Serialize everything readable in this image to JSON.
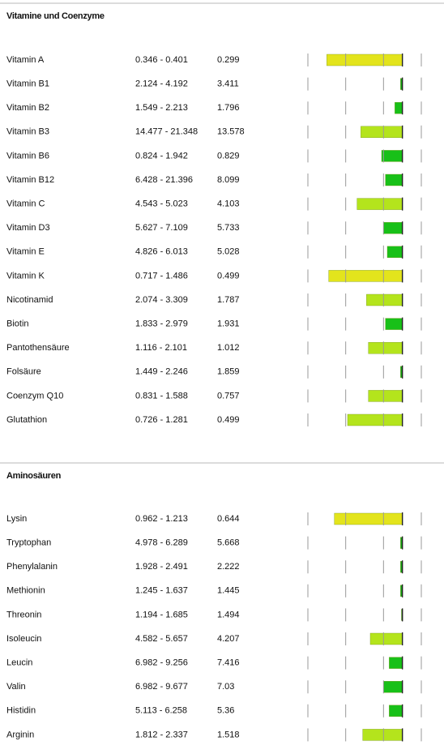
{
  "sections": [
    {
      "title": "Vitamine und Coenzyme",
      "rows": [
        {
          "name": "Vitamin A",
          "range": "0.346 - 0.401",
          "value": "0.299",
          "bar": -4.0,
          "color": "#e3e41c"
        },
        {
          "name": "Vitamin B1",
          "range": "2.124 - 4.192",
          "value": "3.411",
          "bar": -0.1,
          "color": "#16a416"
        },
        {
          "name": "Vitamin B2",
          "range": "1.549 - 2.213",
          "value": "1.796",
          "bar": -0.4,
          "color": "#18c018"
        },
        {
          "name": "Vitamin B3",
          "range": "14.477 - 21.348",
          "value": "13.578",
          "bar": -2.2,
          "color": "#b4e41c"
        },
        {
          "name": "Vitamin B6",
          "range": "0.824 - 1.942",
          "value": "0.829",
          "bar": -1.1,
          "color": "#18c018"
        },
        {
          "name": "Vitamin B12",
          "range": "6.428 - 21.396",
          "value": "8.099",
          "bar": -0.9,
          "color": "#18c018"
        },
        {
          "name": "Vitamin C",
          "range": "4.543 - 5.023",
          "value": "4.103",
          "bar": -2.4,
          "color": "#b4e41c"
        },
        {
          "name": "Vitamin D3",
          "range": "5.627 - 7.109",
          "value": "5.733",
          "bar": -1.0,
          "color": "#18c018"
        },
        {
          "name": "Vitamin E",
          "range": "4.826 - 6.013",
          "value": "5.028",
          "bar": -0.8,
          "color": "#18c018"
        },
        {
          "name": "Vitamin K",
          "range": "0.717 - 1.486",
          "value": "0.499",
          "bar": -3.9,
          "color": "#e3e41c"
        },
        {
          "name": "Nicotinamid",
          "range": "2.074 - 3.309",
          "value": "1.787",
          "bar": -1.9,
          "color": "#b4e41c"
        },
        {
          "name": "Biotin",
          "range": "1.833 - 2.979",
          "value": "1.931",
          "bar": -0.9,
          "color": "#18c018"
        },
        {
          "name": "Pantothensäure",
          "range": "1.116 - 2.101",
          "value": "1.012",
          "bar": -1.8,
          "color": "#b4e41c"
        },
        {
          "name": "Folsäure",
          "range": "1.449 - 2.246",
          "value": "1.859",
          "bar": -0.1,
          "color": "#16a416"
        },
        {
          "name": "Coenzym Q10",
          "range": "0.831 - 1.588",
          "value": "0.757",
          "bar": -1.8,
          "color": "#b4e41c"
        },
        {
          "name": "Glutathion",
          "range": "0.726 - 1.281",
          "value": "0.499",
          "bar": -2.9,
          "color": "#b4e41c"
        }
      ]
    },
    {
      "title": "Aminosäuren",
      "rows": [
        {
          "name": "Lysin",
          "range": "0.962 - 1.213",
          "value": "0.644",
          "bar": -3.6,
          "color": "#e3e41c"
        },
        {
          "name": "Tryptophan",
          "range": "4.978 - 6.289",
          "value": "5.668",
          "bar": -0.1,
          "color": "#16a416"
        },
        {
          "name": "Phenylalanin",
          "range": "1.928 - 2.491",
          "value": "2.222",
          "bar": -0.1,
          "color": "#16a416"
        },
        {
          "name": "Methionin",
          "range": "1.245 - 1.637",
          "value": "1.445",
          "bar": -0.1,
          "color": "#16a416"
        },
        {
          "name": "Threonin",
          "range": "1.194 - 1.685",
          "value": "1.494",
          "bar": -0.05,
          "color": "#16a416"
        },
        {
          "name": "Isoleucin",
          "range": "4.582 - 5.657",
          "value": "4.207",
          "bar": -1.7,
          "color": "#b4e41c"
        },
        {
          "name": "Leucin",
          "range": "6.982 - 9.256",
          "value": "7.416",
          "bar": -0.7,
          "color": "#18c018"
        },
        {
          "name": "Valin",
          "range": "6.982 - 9.677",
          "value": "7.03",
          "bar": -1.0,
          "color": "#18c018"
        },
        {
          "name": "Histidin",
          "range": "5.113 - 6.258",
          "value": "5.36",
          "bar": -0.7,
          "color": "#18c018"
        },
        {
          "name": "Arginin",
          "range": "1.812 - 2.337",
          "value": "1.518",
          "bar": -2.1,
          "color": "#b4e41c"
        }
      ]
    }
  ],
  "bar_scale": {
    "lim": [
      -5,
      1
    ],
    "ticks": [
      -5,
      -3,
      -1,
      0,
      1
    ]
  }
}
